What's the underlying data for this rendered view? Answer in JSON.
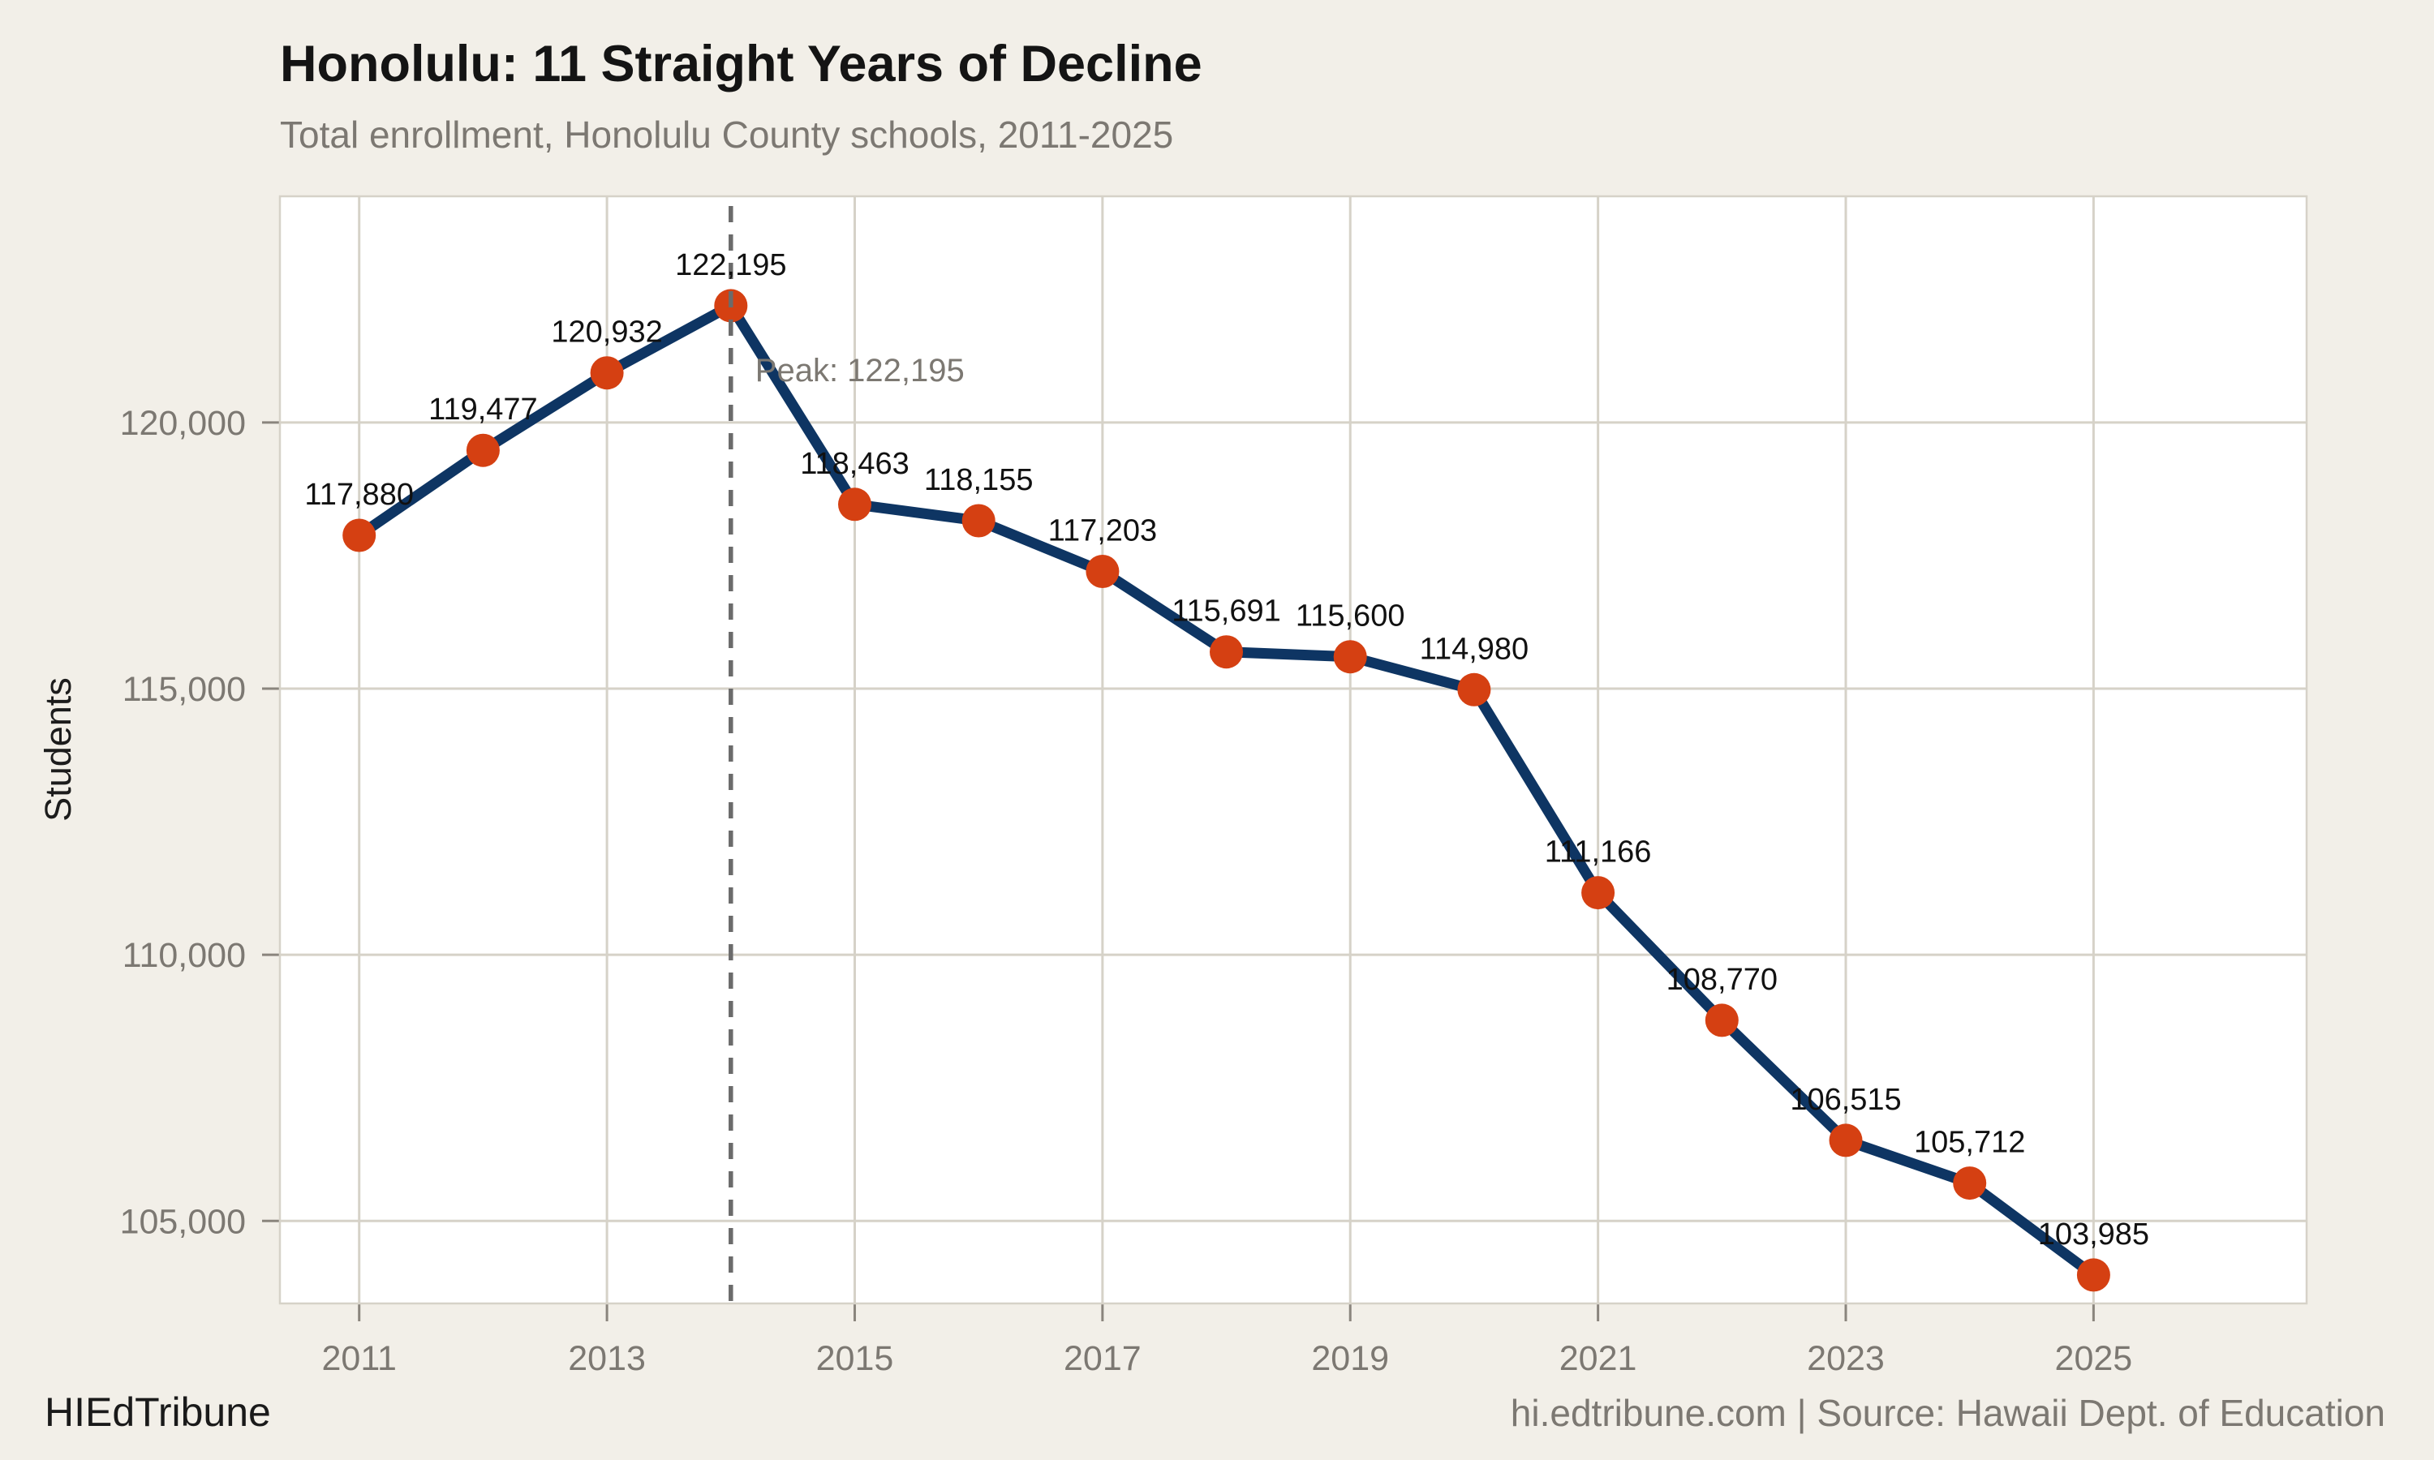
{
  "title": "Honolulu: 11 Straight Years of Decline",
  "subtitle": "Total enrollment, Honolulu County schools, 2011-2025",
  "footer": {
    "brand": "HIEdTribune",
    "source": "hi.edtribune.com | Source: Hawaii Dept. of Education"
  },
  "chart_data": {
    "type": "line",
    "title": "Honolulu: 11 Straight Years of Decline",
    "subtitle": "Total enrollment, Honolulu County schools, 2011-2025",
    "xlabel": "",
    "ylabel": "Students",
    "x": [
      2011,
      2012,
      2013,
      2014,
      2015,
      2016,
      2017,
      2018,
      2019,
      2020,
      2021,
      2022,
      2023,
      2024,
      2025
    ],
    "values": [
      117880,
      119477,
      120932,
      122195,
      118463,
      118155,
      117203,
      115691,
      115600,
      114980,
      111166,
      108770,
      106515,
      105712,
      103985
    ],
    "point_labels": [
      "117,880",
      "119,477",
      "120,932",
      "122,195",
      "118,463",
      "118,155",
      "117,203",
      "115,691",
      "115,600",
      "114,980",
      "111,166",
      "108,770",
      "106,515",
      "105,712",
      "103,985"
    ],
    "x_ticks": [
      2011,
      2013,
      2015,
      2017,
      2019,
      2021,
      2023,
      2025
    ],
    "x_tick_labels": [
      "2011",
      "2013",
      "2015",
      "2017",
      "2019",
      "2021",
      "2023",
      "2025"
    ],
    "y_ticks": [
      105000,
      110000,
      115000,
      120000
    ],
    "y_tick_labels": [
      "105,000",
      "110,000",
      "115,000",
      "120,000"
    ],
    "xlim": [
      2010.36,
      2026.72
    ],
    "ylim": [
      103450,
      124250
    ],
    "grid": true,
    "legend": "none",
    "annotations": {
      "peak_label": "Peak: 122,195",
      "peak_x": 2014
    }
  },
  "colors": {
    "background": "#f2efe8",
    "panel": "#ffffff",
    "grid": "#d6d2c8",
    "panel_border": "#d6d2c8",
    "line": "#0e3563",
    "marker": "#d54012",
    "dashed": "#6b6b6b",
    "text_dark": "#141414",
    "label_text": "#111111",
    "text_muted": "#7c7872",
    "tick": "#8a857d"
  }
}
